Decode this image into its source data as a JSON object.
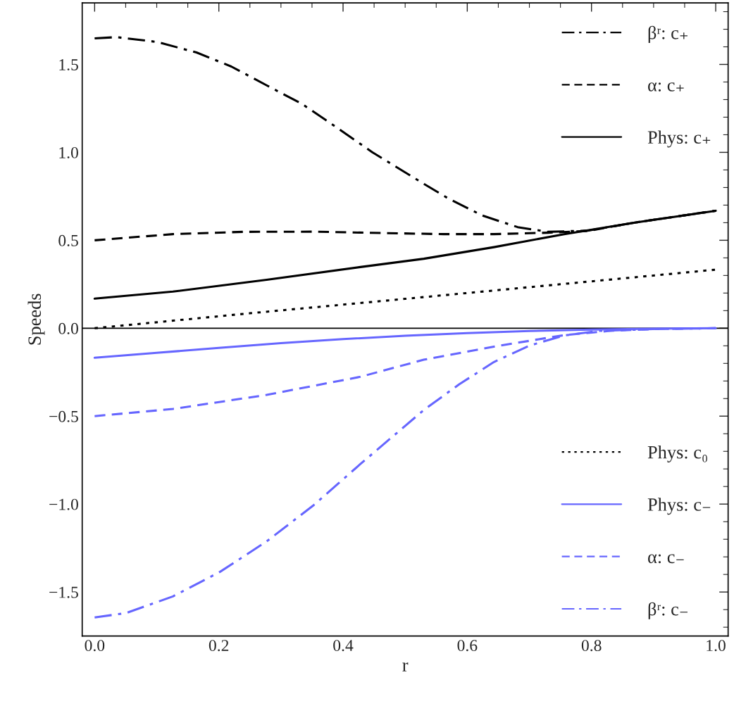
{
  "chart_data": {
    "type": "line",
    "xlabel": "r",
    "ylabel": "Speeds",
    "xlim": [
      -0.02,
      1.02
    ],
    "ylim": [
      -1.75,
      1.85
    ],
    "xticks": [
      {
        "value": 0,
        "label": "0.0"
      },
      0.2,
      0.4,
      0.6,
      0.8,
      {
        "value": 1,
        "label": "1.0"
      }
    ],
    "yticks": [
      {
        "value": -1.5,
        "label": "−1.5"
      },
      {
        "value": -1,
        "label": "−1.0"
      },
      {
        "value": -0.5,
        "label": "−0.5"
      },
      {
        "value": 0,
        "label": "0.0"
      },
      0.5,
      {
        "value": 1,
        "label": "1.0"
      },
      1.5
    ],
    "legend": "right",
    "grid": false,
    "ref_lines": [
      {
        "axis": "y",
        "value": 0,
        "color": "#000000"
      }
    ],
    "series": [
      {
        "name": "βʳ: c₊",
        "color": "#000000",
        "line_style": "dashdot",
        "x": [
          0,
          0.035,
          0.1,
          0.164,
          0.22,
          0.277,
          0.334,
          0.39,
          0.447,
          0.53,
          0.568,
          0.624,
          0.681,
          0.73,
          0.794,
          0.87,
          1.0
        ],
        "values": [
          1.648,
          1.655,
          1.628,
          1.568,
          1.488,
          1.381,
          1.275,
          1.141,
          1.001,
          0.821,
          0.741,
          0.641,
          0.575,
          0.548,
          0.555,
          0.601,
          0.668
        ]
      },
      {
        "name": "α: c₊",
        "color": "#000000",
        "line_style": "dashed",
        "x": [
          0,
          0.126,
          0.239,
          0.352,
          0.466,
          0.562,
          0.643,
          0.73,
          0.794,
          0.87,
          1.0
        ],
        "values": [
          0.5,
          0.535,
          0.548,
          0.549,
          0.541,
          0.535,
          0.535,
          0.543,
          0.553,
          0.601,
          0.668
        ]
      },
      {
        "name": "Phys: c₊",
        "color": "#000000",
        "line_style": "solid",
        "x": [
          0,
          0.126,
          0.277,
          0.428,
          0.53,
          0.643,
          0.756,
          0.87,
          1.0
        ],
        "values": [
          0.168,
          0.208,
          0.275,
          0.348,
          0.395,
          0.461,
          0.535,
          0.601,
          0.668
        ]
      },
      {
        "name": "Phys: c₀",
        "color": "#000000",
        "line_style": "dotted",
        "x": [
          0,
          0.25,
          0.5,
          0.75,
          1.0
        ],
        "values": [
          0,
          0.085,
          0.167,
          0.25,
          0.333
        ]
      },
      {
        "name": "Phys: c₋",
        "color": "#6666ff",
        "line_style": "solid",
        "x": [
          0,
          0.1,
          0.2,
          0.3,
          0.4,
          0.5,
          0.6,
          0.7,
          0.8,
          0.9,
          1.0
        ],
        "values": [
          -0.168,
          -0.14,
          -0.112,
          -0.085,
          -0.062,
          -0.043,
          -0.028,
          -0.016,
          -0.008,
          -0.003,
          0
        ]
      },
      {
        "name": "α: c₋",
        "color": "#6666ff",
        "line_style": "dashed",
        "x": [
          0,
          0.126,
          0.277,
          0.428,
          0.53,
          0.643,
          0.756,
          0.83,
          0.9,
          1.0
        ],
        "values": [
          -0.5,
          -0.459,
          -0.379,
          -0.276,
          -0.179,
          -0.105,
          -0.039,
          -0.015,
          -0.005,
          0
        ]
      },
      {
        "name": "βʳ: c₋",
        "color": "#6666ff",
        "line_style": "dashdot",
        "x": [
          0,
          0.051,
          0.126,
          0.202,
          0.277,
          0.353,
          0.428,
          0.53,
          0.587,
          0.643,
          0.7,
          0.756,
          0.813,
          0.907,
          1.0
        ],
        "values": [
          -1.645,
          -1.619,
          -1.525,
          -1.385,
          -1.212,
          -1.005,
          -0.772,
          -0.465,
          -0.319,
          -0.192,
          -0.099,
          -0.041,
          -0.015,
          -0.004,
          0
        ]
      }
    ]
  }
}
